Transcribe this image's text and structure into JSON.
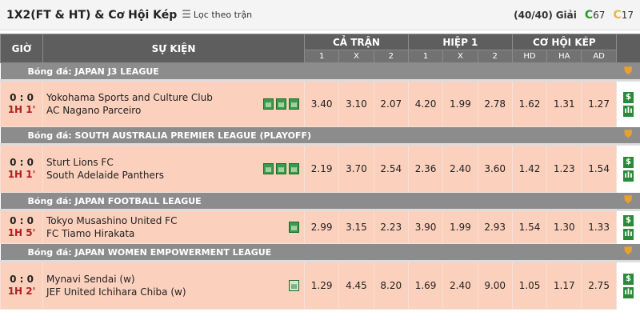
{
  "header": {
    "title": "1X2(FT & HT) & Cơ Hội Kép",
    "filter_label": "Lọc theo trận",
    "filter_icon": "sort-filter-icon",
    "leagues_count": "(40/40)",
    "leagues_label": "Giải",
    "live_count": "67",
    "upcoming_count": "17"
  },
  "columns": {
    "time": "GIỜ",
    "event": "SỰ KIỆN",
    "full_time": "CẢ TRẬN",
    "half1": "HIỆP 1",
    "double_chance": "CƠ HỘI KÉP",
    "sub": [
      "1",
      "X",
      "2",
      "1",
      "X",
      "2",
      "HD",
      "HA",
      "AD"
    ]
  },
  "colors": {
    "header_bg": "#5e5e5e",
    "league_bg": "#8c8c8c",
    "match_bg": "#fbd0bd",
    "clock": "#b02020"
  },
  "groups": [
    {
      "league": "Bóng đá: JAPAN J3 LEAGUE",
      "match": {
        "score": "0 : 0",
        "clock": "1H 1'",
        "home": "Yokohama Sports and Culture Club",
        "away": "AC Nagano Parceiro",
        "icons": 3,
        "odds": [
          "3.40",
          "3.10",
          "2.07",
          "4.20",
          "1.99",
          "2.78",
          "1.62",
          "1.31",
          "1.27"
        ]
      }
    },
    {
      "league": "Bóng đá: SOUTH AUSTRALIA PREMIER LEAGUE (PLAYOFF)",
      "match": {
        "score": "0 : 0",
        "clock": "1H 1'",
        "home": "Sturt Lions FC",
        "away": "South Adelaide Panthers",
        "icons": 3,
        "odds": [
          "2.19",
          "3.70",
          "2.54",
          "2.36",
          "2.40",
          "3.60",
          "1.42",
          "1.23",
          "1.54"
        ]
      }
    },
    {
      "league": "Bóng đá: JAPAN FOOTBALL LEAGUE",
      "match": {
        "score": "0 : 0",
        "clock": "1H 5'",
        "home": "Tokyo Musashino United FC",
        "away": "FC Tiamo Hirakata",
        "icons": 1,
        "odds": [
          "2.99",
          "3.15",
          "2.23",
          "3.90",
          "1.99",
          "2.93",
          "1.54",
          "1.30",
          "1.33"
        ]
      }
    },
    {
      "league": "Bóng đá: JAPAN WOMEN EMPOWERMENT LEAGUE",
      "match": {
        "score": "0 : 0",
        "clock": "1H 2'",
        "home": "Mynavi Sendai (w)",
        "away": "JEF United Ichihara Chiba (w)",
        "icons": 1,
        "odds": [
          "1.29",
          "4.45",
          "8.20",
          "1.69",
          "2.40",
          "9.00",
          "1.05",
          "1.17",
          "2.75"
        ]
      }
    }
  ]
}
